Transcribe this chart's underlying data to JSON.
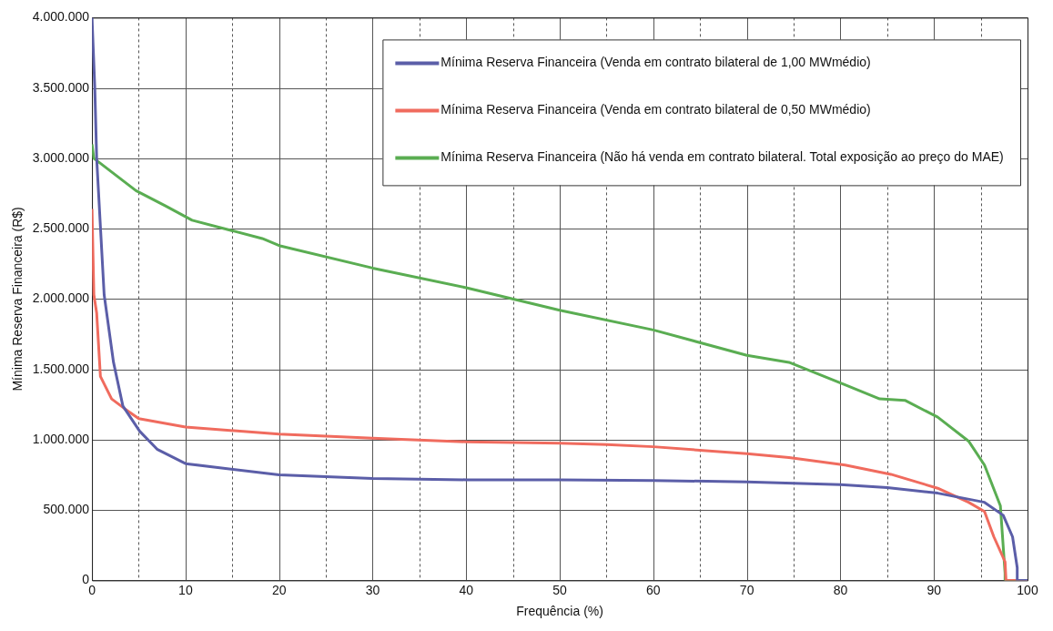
{
  "chart_data": {
    "type": "line",
    "xlabel": "Frequência (%)",
    "ylabel": "Mínima Reserva Financeira (R$)",
    "xlim": [
      0,
      100
    ],
    "xticks": [
      0,
      {
        "value": 5,
        "label": null
      },
      10,
      {
        "value": 15,
        "label": null
      },
      20,
      {
        "value": 25,
        "label": null
      },
      30,
      {
        "value": 35,
        "label": null
      },
      40,
      {
        "value": 45,
        "label": null
      },
      50,
      {
        "value": 55,
        "label": null
      },
      60,
      {
        "value": 65,
        "label": null
      },
      70,
      {
        "value": 75,
        "label": null
      },
      80,
      {
        "value": 85,
        "label": null
      },
      90,
      {
        "value": 95,
        "label": null
      },
      100
    ],
    "ylim": [
      0,
      4000000
    ],
    "yticks": [
      {
        "value": 0,
        "label": "0"
      },
      {
        "value": 500000,
        "label": "500.000"
      },
      {
        "value": 1000000,
        "label": "1.000.000"
      },
      {
        "value": 1500000,
        "label": "1.500.000"
      },
      {
        "value": 2000000,
        "label": "2.000.000"
      },
      {
        "value": 2500000,
        "label": "2.500.000"
      },
      {
        "value": 3000000,
        "label": "3.000.000"
      },
      {
        "value": 3500000,
        "label": "3.500.000"
      },
      {
        "value": 4000000,
        "label": "4.000.000"
      }
    ],
    "grid": true,
    "legend": "top right",
    "series": [
      {
        "name": "Mínima Reserva Financeira (Venda em contrato bilateral de 1,00 MWmédio)",
        "color": "#5b5ea8",
        "x": [
          0,
          0.3,
          0.5,
          1.3,
          2.3,
          3.3,
          5.1,
          7,
          10,
          20,
          30,
          40,
          50,
          60,
          70,
          80,
          85,
          90.4,
          95.4,
          97.4,
          98.4,
          98.9,
          98.9,
          100
        ],
        "values": [
          4000000,
          3500000,
          3000000,
          2030000,
          1550000,
          1240000,
          1060000,
          930000,
          830000,
          750000,
          725000,
          715000,
          715000,
          710000,
          700000,
          680000,
          660000,
          620000,
          555000,
          463000,
          310000,
          90000,
          0,
          0
        ]
      },
      {
        "name": "Mínima Reserva Financeira (Venda em contrato bilateral de 0,50 MWmédio)",
        "color": "#f06b5e",
        "x": [
          0,
          0.2,
          0.5,
          0.9,
          2.1,
          3.5,
          5,
          10,
          20,
          30,
          40,
          50,
          55,
          60,
          70,
          74.5,
          80.5,
          85.4,
          90.4,
          93.7,
          95.4,
          96.4,
          97.6,
          97.7,
          100
        ],
        "values": [
          2640000,
          2030000,
          1900000,
          1450000,
          1290000,
          1220000,
          1150000,
          1090000,
          1040000,
          1010000,
          985000,
          975000,
          965000,
          950000,
          900000,
          873000,
          820000,
          754000,
          655000,
          555000,
          490000,
          310000,
          132000,
          0,
          0
        ]
      },
      {
        "name": "Mínima Reserva Financeira (Não há venda em contrato bilateral. Total exposição ao preço do MAE)",
        "color": "#5aad52",
        "x": [
          0,
          0.2,
          4.7,
          7.9,
          10.7,
          18.2,
          20,
          30,
          40,
          50,
          60,
          70,
          74.5,
          80.5,
          84.2,
          86.9,
          90.4,
          93.7,
          95.4,
          97.1,
          97.6,
          97.6,
          100
        ],
        "values": [
          3100000,
          3000000,
          2770000,
          2660000,
          2560000,
          2430000,
          2380000,
          2220000,
          2080000,
          1920000,
          1780000,
          1600000,
          1550000,
          1390000,
          1290000,
          1280000,
          1160000,
          990000,
          820000,
          530000,
          50000,
          0,
          0
        ]
      }
    ]
  }
}
